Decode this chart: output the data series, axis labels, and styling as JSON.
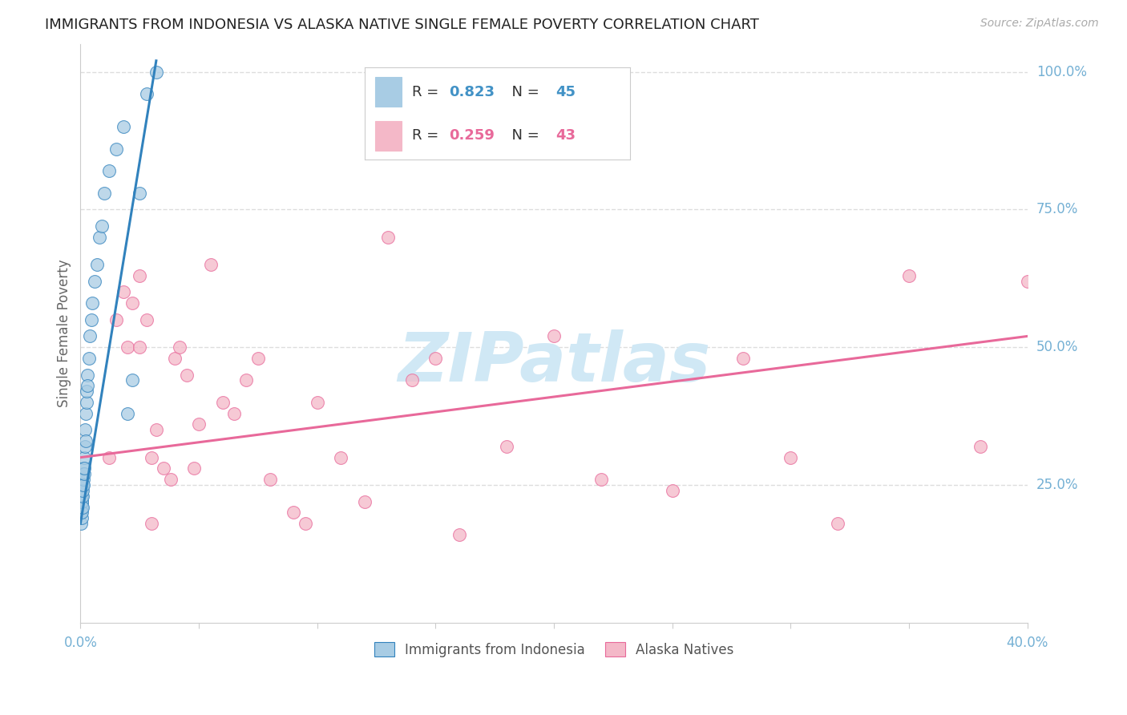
{
  "title": "IMMIGRANTS FROM INDONESIA VS ALASKA NATIVE SINGLE FEMALE POVERTY CORRELATION CHART",
  "source": "Source: ZipAtlas.com",
  "ylabel": "Single Female Poverty",
  "legend1_r": "0.823",
  "legend1_n": "45",
  "legend2_r": "0.259",
  "legend2_n": "43",
  "legend1_label": "Immigrants from Indonesia",
  "legend2_label": "Alaska Natives",
  "blue_color": "#a8cce4",
  "pink_color": "#f4b8c8",
  "blue_line_color": "#3182bd",
  "pink_line_color": "#e8699a",
  "blue_accent_color": "#4292c6",
  "pink_accent_color": "#e8699a",
  "title_color": "#222222",
  "axis_label_color": "#74b0d4",
  "watermark_color": "#d0e8f5",
  "background_color": "#ffffff",
  "grid_color": "#dddddd",
  "blue_scatter_x": [
    0.0002,
    0.0003,
    0.0004,
    0.0005,
    0.0005,
    0.0006,
    0.0006,
    0.0007,
    0.0007,
    0.0008,
    0.0008,
    0.0009,
    0.001,
    0.001,
    0.0012,
    0.0013,
    0.0014,
    0.0015,
    0.0016,
    0.0017,
    0.0018,
    0.002,
    0.0022,
    0.0023,
    0.0025,
    0.0026,
    0.0028,
    0.003,
    0.0035,
    0.004,
    0.0045,
    0.005,
    0.006,
    0.007,
    0.008,
    0.009,
    0.01,
    0.012,
    0.015,
    0.018,
    0.02,
    0.022,
    0.025,
    0.028,
    0.032
  ],
  "blue_scatter_y": [
    0.18,
    0.2,
    0.22,
    0.21,
    0.23,
    0.19,
    0.24,
    0.2,
    0.22,
    0.21,
    0.23,
    0.25,
    0.27,
    0.24,
    0.26,
    0.28,
    0.25,
    0.27,
    0.3,
    0.28,
    0.32,
    0.35,
    0.33,
    0.38,
    0.4,
    0.42,
    0.45,
    0.43,
    0.48,
    0.52,
    0.55,
    0.58,
    0.62,
    0.65,
    0.7,
    0.72,
    0.78,
    0.82,
    0.86,
    0.9,
    0.38,
    0.44,
    0.78,
    0.96,
    1.0
  ],
  "pink_scatter_x": [
    0.012,
    0.015,
    0.018,
    0.02,
    0.022,
    0.025,
    0.028,
    0.03,
    0.032,
    0.035,
    0.038,
    0.04,
    0.042,
    0.045,
    0.048,
    0.05,
    0.055,
    0.06,
    0.065,
    0.07,
    0.075,
    0.08,
    0.09,
    0.095,
    0.1,
    0.11,
    0.12,
    0.13,
    0.14,
    0.15,
    0.16,
    0.18,
    0.2,
    0.22,
    0.25,
    0.28,
    0.3,
    0.32,
    0.35,
    0.38,
    0.025,
    0.03,
    0.4
  ],
  "pink_scatter_y": [
    0.3,
    0.55,
    0.6,
    0.5,
    0.58,
    0.5,
    0.55,
    0.3,
    0.35,
    0.28,
    0.26,
    0.48,
    0.5,
    0.45,
    0.28,
    0.36,
    0.65,
    0.4,
    0.38,
    0.44,
    0.48,
    0.26,
    0.2,
    0.18,
    0.4,
    0.3,
    0.22,
    0.7,
    0.44,
    0.48,
    0.16,
    0.32,
    0.52,
    0.26,
    0.24,
    0.48,
    0.3,
    0.18,
    0.63,
    0.32,
    0.63,
    0.18,
    0.62
  ],
  "xlim": [
    0.0,
    0.4
  ],
  "ylim": [
    0.0,
    1.05
  ],
  "blue_regline_x": [
    0.0,
    0.032
  ],
  "blue_regline_y": [
    0.18,
    1.02
  ],
  "pink_regline_x": [
    0.0,
    0.4
  ],
  "pink_regline_y": [
    0.3,
    0.52
  ]
}
